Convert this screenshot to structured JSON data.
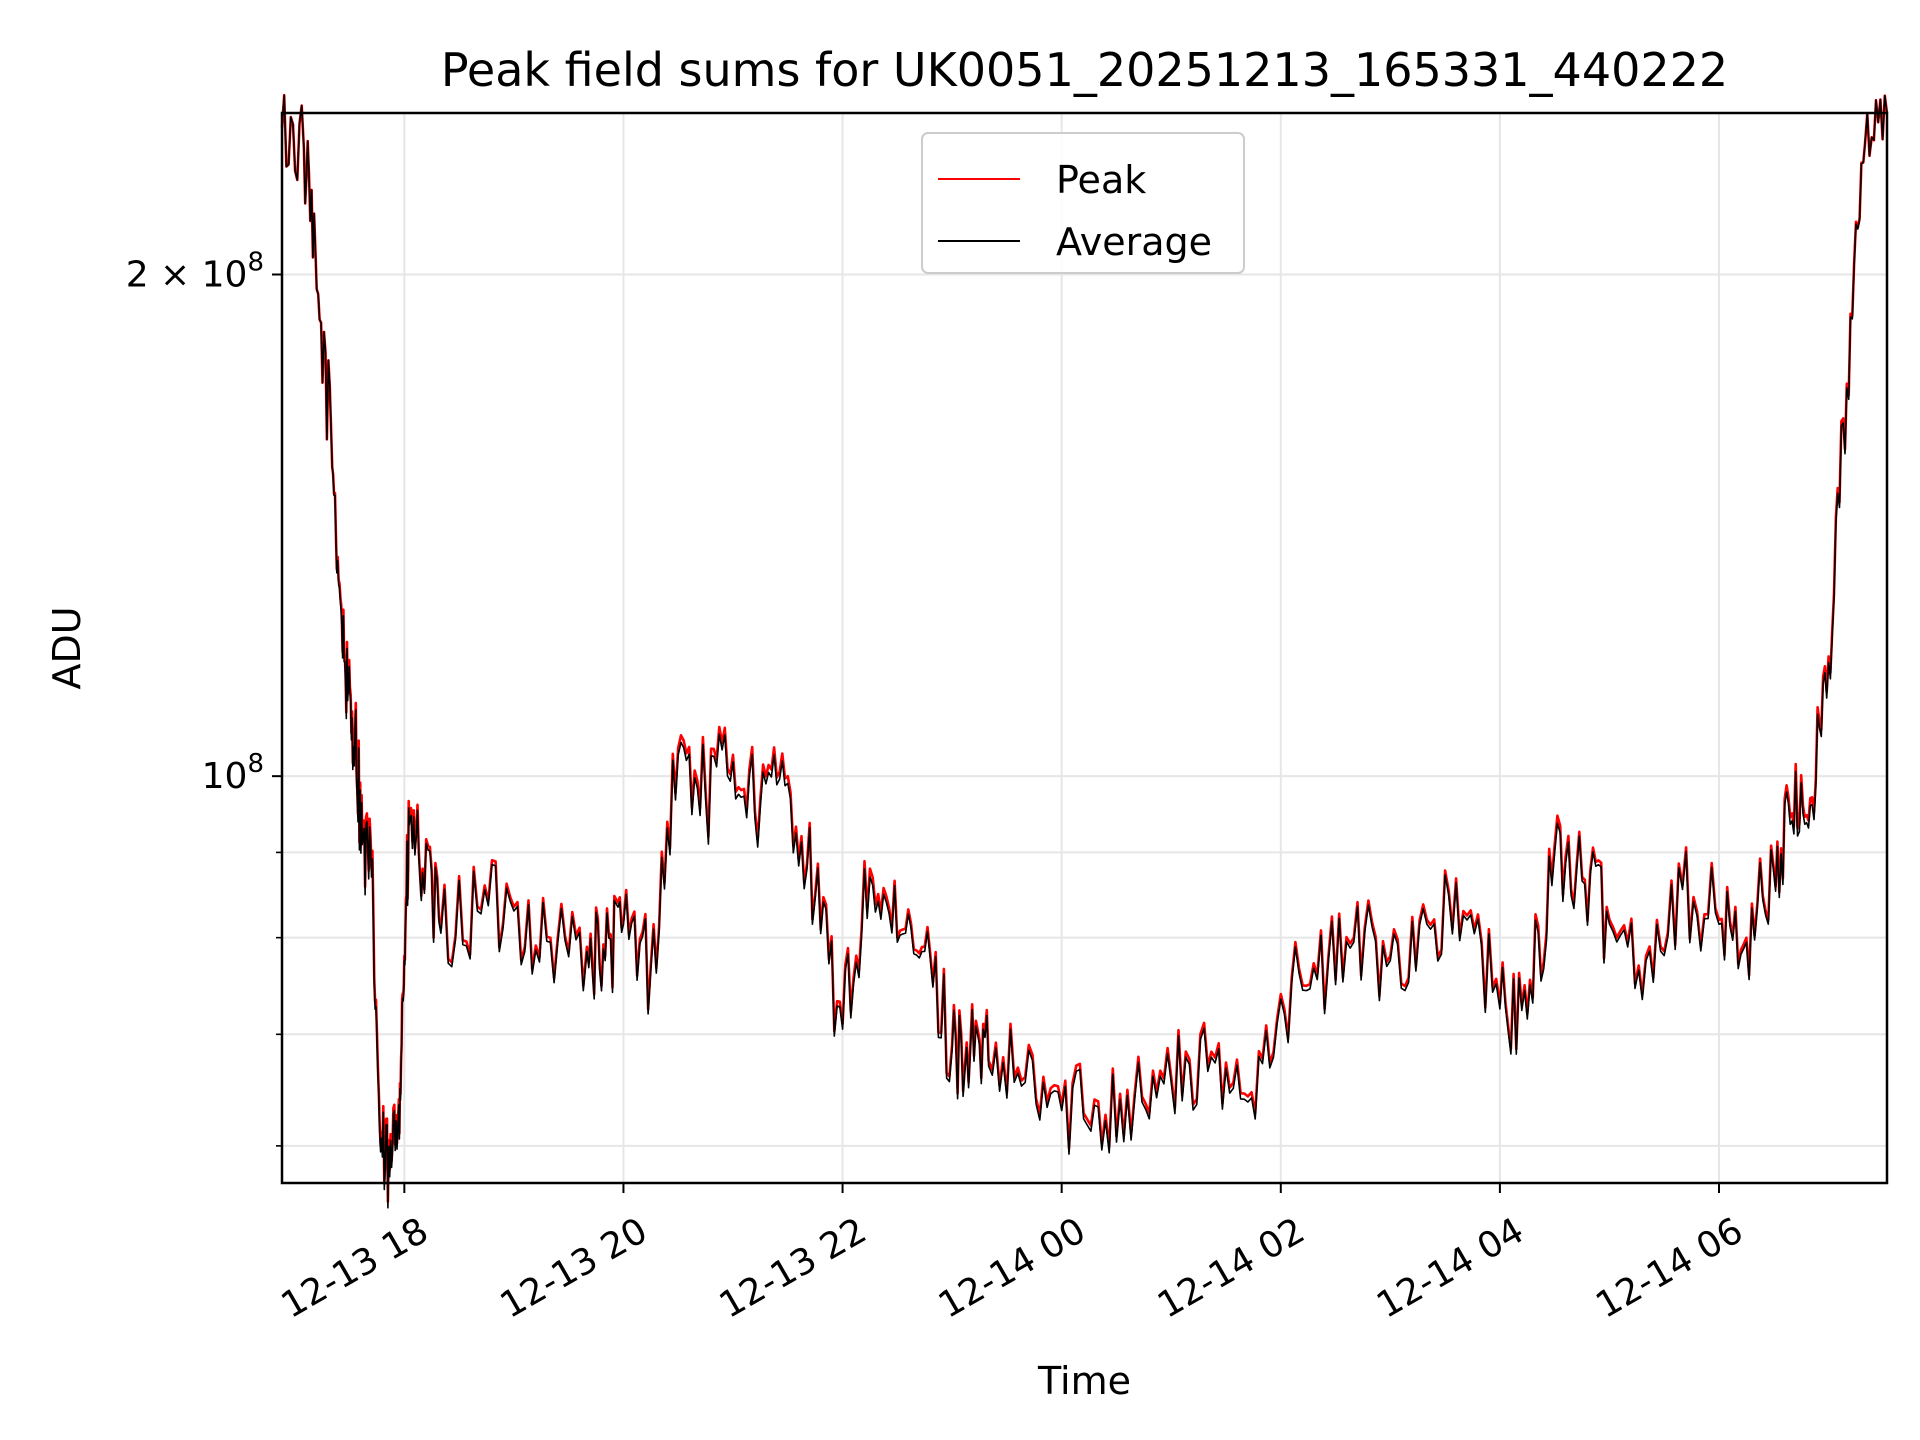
{
  "chart_data": {
    "type": "line",
    "title": "Peak field sums for UK0051_20251213_165331_440222",
    "xlabel": "Time",
    "ylabel": "ADU",
    "y_scale": "log",
    "ylim": [
      57000000,
      250000000
    ],
    "xlim": [
      "2025-12-13 16:53",
      "2025-12-14 07:32"
    ],
    "grid": true,
    "legend_position": "top-center",
    "x_ticks": [
      "12-13 18",
      "12-13 20",
      "12-13 22",
      "12-14 00",
      "12-14 02",
      "12-14 04",
      "12-14 06"
    ],
    "y_ticks": [
      {
        "value": 100000000,
        "label": "10^8"
      },
      {
        "value": 200000000,
        "label": "2 × 10^8"
      }
    ],
    "series": [
      {
        "name": "Peak",
        "color": "#ff0000",
        "x": [
          "2025-12-13 16:53",
          "2025-12-13 17:05",
          "2025-12-13 17:12",
          "2025-12-13 17:20",
          "2025-12-13 17:25",
          "2025-12-13 17:29",
          "2025-12-13 17:33",
          "2025-12-13 17:37",
          "2025-12-13 17:42",
          "2025-12-13 17:47",
          "2025-12-13 17:52",
          "2025-12-13 17:57",
          "2025-12-13 18:00",
          "2025-12-13 18:03",
          "2025-12-13 18:10",
          "2025-12-13 18:20",
          "2025-12-13 18:40",
          "2025-12-13 19:00",
          "2025-12-13 19:20",
          "2025-12-13 19:40",
          "2025-12-13 19:50",
          "2025-12-13 20:00",
          "2025-12-13 20:15",
          "2025-12-13 20:30",
          "2025-12-13 20:45",
          "2025-12-13 21:00",
          "2025-12-13 21:15",
          "2025-12-13 21:30",
          "2025-12-13 21:45",
          "2025-12-13 22:00",
          "2025-12-13 22:15",
          "2025-12-13 22:30",
          "2025-12-13 22:45",
          "2025-12-13 23:00",
          "2025-12-13 23:10",
          "2025-12-13 23:20",
          "2025-12-13 23:40",
          "2025-12-14 00:00",
          "2025-12-14 00:20",
          "2025-12-14 00:40",
          "2025-12-14 01:00",
          "2025-12-14 01:20",
          "2025-12-14 01:40",
          "2025-12-14 02:00",
          "2025-12-14 02:20",
          "2025-12-14 02:40",
          "2025-12-14 03:00",
          "2025-12-14 03:20",
          "2025-12-14 03:40",
          "2025-12-14 04:00",
          "2025-12-14 04:15",
          "2025-12-14 04:30",
          "2025-12-14 04:45",
          "2025-12-14 05:00",
          "2025-12-14 05:20",
          "2025-12-14 05:40",
          "2025-12-14 06:00",
          "2025-12-14 06:15",
          "2025-12-14 06:30",
          "2025-12-14 06:40",
          "2025-12-14 06:50",
          "2025-12-14 07:00",
          "2025-12-14 07:10",
          "2025-12-14 07:20",
          "2025-12-14 07:32"
        ],
        "values": [
          245000000,
          238000000,
          196000000,
          160000000,
          128000000,
          112000000,
          107000000,
          92000000,
          88000000,
          60000000,
          58000000,
          64000000,
          78000000,
          95000000,
          88000000,
          81000000,
          83500000,
          83500000,
          80000000,
          79000000,
          78000000,
          82000000,
          77000000,
          104000000,
          98000000,
          103000000,
          97000000,
          100000000,
          85000000,
          71000000,
          88000000,
          80000000,
          79000000,
          69000000,
          69000000,
          67500000,
          66000000,
          63500000,
          63800000,
          64500000,
          66000000,
          67000000,
          64500000,
          74000000,
          76000000,
          80000000,
          78000000,
          82000000,
          83000000,
          73000000,
          72000000,
          91000000,
          87000000,
          82000000,
          78000000,
          86000000,
          82000000,
          80000000,
          88000000,
          95000000,
          97000000,
          118000000,
          172000000,
          240000000,
          250000000
        ]
      },
      {
        "name": "Average",
        "color": "#000000",
        "x": [
          "2025-12-13 16:53",
          "2025-12-13 17:05",
          "2025-12-13 17:12",
          "2025-12-13 17:20",
          "2025-12-13 17:25",
          "2025-12-13 17:29",
          "2025-12-13 17:33",
          "2025-12-13 17:37",
          "2025-12-13 17:42",
          "2025-12-13 17:47",
          "2025-12-13 17:52",
          "2025-12-13 17:57",
          "2025-12-13 18:00",
          "2025-12-13 18:03",
          "2025-12-13 18:10",
          "2025-12-13 18:20",
          "2025-12-13 18:40",
          "2025-12-13 19:00",
          "2025-12-13 19:20",
          "2025-12-13 19:40",
          "2025-12-13 19:50",
          "2025-12-13 20:00",
          "2025-12-13 20:15",
          "2025-12-13 20:30",
          "2025-12-13 20:45",
          "2025-12-13 21:00",
          "2025-12-13 21:15",
          "2025-12-13 21:30",
          "2025-12-13 21:45",
          "2025-12-13 22:00",
          "2025-12-13 22:15",
          "2025-12-13 22:30",
          "2025-12-13 22:45",
          "2025-12-13 23:00",
          "2025-12-13 23:10",
          "2025-12-13 23:20",
          "2025-12-13 23:40",
          "2025-12-14 00:00",
          "2025-12-14 00:20",
          "2025-12-14 00:40",
          "2025-12-14 01:00",
          "2025-12-14 01:20",
          "2025-12-14 01:40",
          "2025-12-14 02:00",
          "2025-12-14 02:20",
          "2025-12-14 02:40",
          "2025-12-14 03:00",
          "2025-12-14 03:20",
          "2025-12-14 03:40",
          "2025-12-14 04:00",
          "2025-12-14 04:15",
          "2025-12-14 04:30",
          "2025-12-14 04:45",
          "2025-12-14 05:00",
          "2025-12-14 05:20",
          "2025-12-14 05:40",
          "2025-12-14 06:00",
          "2025-12-14 06:15",
          "2025-12-14 06:30",
          "2025-12-14 06:40",
          "2025-12-14 06:50",
          "2025-12-14 07:00",
          "2025-12-14 07:10",
          "2025-12-14 07:20",
          "2025-12-14 07:32"
        ],
        "values": [
          245000000,
          238000000,
          196000000,
          160000000,
          127000000,
          111000000,
          106000000,
          91000000,
          87000000,
          59500000,
          57500000,
          63500000,
          77500000,
          94000000,
          87500000,
          80500000,
          83000000,
          83000000,
          79500000,
          78500000,
          77500000,
          81500000,
          76500000,
          103000000,
          97000000,
          102000000,
          96000000,
          99000000,
          84500000,
          70500000,
          87000000,
          79500000,
          78500000,
          68500000,
          68500000,
          67000000,
          65500000,
          63000000,
          63300000,
          64000000,
          65500000,
          66500000,
          64000000,
          73500000,
          75500000,
          79500000,
          77500000,
          81500000,
          82500000,
          72500000,
          71500000,
          90000000,
          86500000,
          81500000,
          77500000,
          85500000,
          81500000,
          79500000,
          87500000,
          94000000,
          96000000,
          117000000,
          171000000,
          240000000,
          250000000
        ]
      }
    ]
  }
}
